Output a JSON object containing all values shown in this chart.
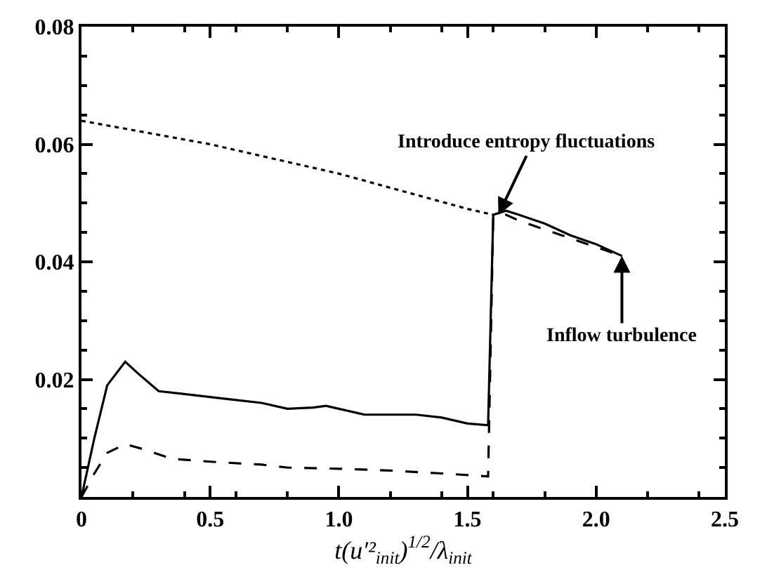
{
  "chart_data": {
    "type": "line",
    "xlabel": "t(u′²$_{init}$)$^{1/2}$/λ$_{init}$",
    "xlim": [
      0,
      2.5
    ],
    "xticks": [
      0,
      0.5,
      {
        "value": 1,
        "label": "1.0"
      },
      1.5,
      {
        "value": 2,
        "label": "2.0"
      },
      2.5
    ],
    "ylim": [
      0,
      0.08
    ],
    "yticks": [
      {
        "value": 0,
        "label": null
      },
      0.02,
      0.04,
      0.06,
      0.08
    ],
    "grid": false,
    "marker": "none",
    "series": [
      {
        "color": "#000000",
        "line_style": "dotted",
        "x": [
          0,
          0.25,
          0.5,
          0.75,
          1.0,
          1.25,
          1.5,
          1.6
        ],
        "values": [
          0.064,
          0.062,
          0.06,
          0.0575,
          0.055,
          0.052,
          0.049,
          0.048
        ]
      },
      {
        "color": "#000000",
        "line_style": "solid",
        "x": [
          0,
          0.05,
          0.1,
          0.17,
          0.22,
          0.3,
          0.4,
          0.5,
          0.6,
          0.7,
          0.8,
          0.9,
          0.95,
          1.0,
          1.1,
          1.2,
          1.3,
          1.4,
          1.5,
          1.58,
          1.6,
          1.65,
          1.7,
          1.8,
          1.9,
          2.0,
          2.1
        ],
        "values": [
          0,
          0.01,
          0.019,
          0.023,
          0.021,
          0.018,
          0.0175,
          0.017,
          0.0165,
          0.016,
          0.015,
          0.0152,
          0.0155,
          0.015,
          0.014,
          0.014,
          0.014,
          0.0135,
          0.0125,
          0.0122,
          0.048,
          0.0487,
          0.048,
          0.0465,
          0.0445,
          0.043,
          0.041
        ]
      },
      {
        "color": "#000000",
        "line_style": "dashed",
        "x": [
          0,
          0.05,
          0.1,
          0.17,
          0.25,
          0.35,
          0.5,
          0.7,
          0.8,
          1.0,
          1.2,
          1.4,
          1.58,
          1.6,
          1.65,
          1.7,
          1.8,
          1.9,
          2.0,
          2.1
        ],
        "values": [
          0,
          0.004,
          0.0075,
          0.009,
          0.008,
          0.0065,
          0.006,
          0.0055,
          0.005,
          0.0048,
          0.0045,
          0.004,
          0.0035,
          0.0475,
          0.048,
          0.047,
          0.0455,
          0.044,
          0.0425,
          0.041
        ]
      }
    ],
    "annotations": [
      {
        "text": "Introduce entropy fluctuations",
        "x": 1.62,
        "y": 0.048
      },
      {
        "text": "Inflow turbulence",
        "x": 2.1,
        "y": 0.041
      }
    ]
  }
}
